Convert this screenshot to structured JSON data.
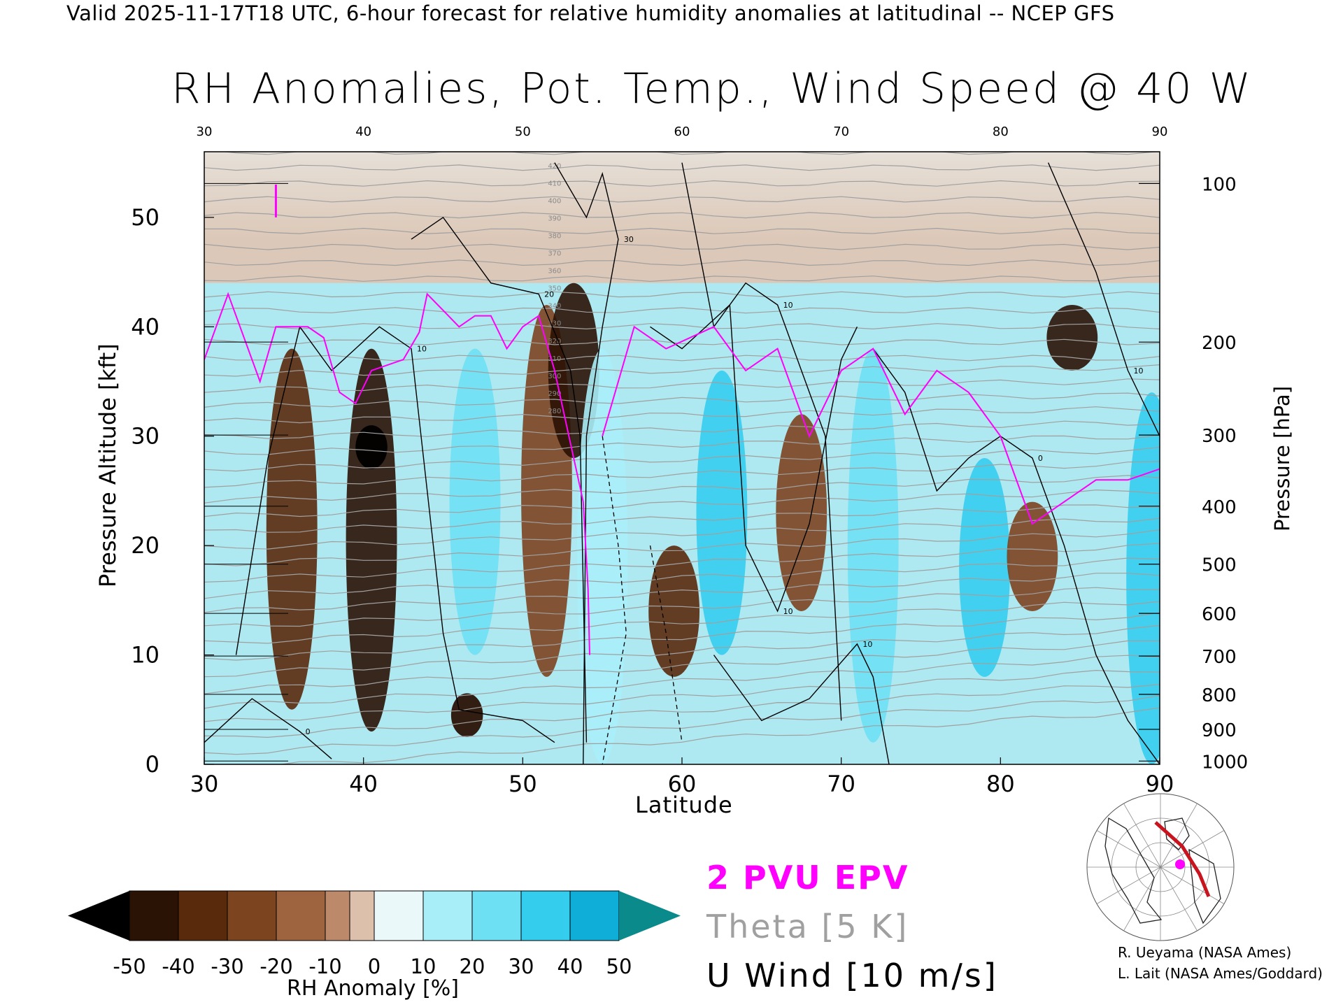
{
  "header": "Valid 2025-11-17T18 UTC, 6-hour forecast for relative humidity anomalies at latitudinal -- NCEP GFS",
  "chart_data": {
    "type": "heatmap",
    "title": "RH Anomalies, Pot. Temp., Wind Speed @ 40 W",
    "xlabel": "Latitude",
    "ylabel": "Pressure Altitude [kft]",
    "ylabel_right": "Pressure [hPa]",
    "xlim": [
      30,
      90
    ],
    "ylim": [
      0,
      56
    ],
    "x_ticks": [
      "30",
      "40",
      "50",
      "60",
      "70",
      "80",
      "90"
    ],
    "y_ticks": [
      "0",
      "10",
      "20",
      "30",
      "40",
      "50"
    ],
    "pressure_ticks": [
      {
        "label": "100",
        "kft": 53.1
      },
      {
        "label": "200",
        "kft": 38.6
      },
      {
        "label": "300",
        "kft": 30.1
      },
      {
        "label": "400",
        "kft": 23.6
      },
      {
        "label": "500",
        "kft": 18.3
      },
      {
        "label": "600",
        "kft": 13.8
      },
      {
        "label": "700",
        "kft": 9.9
      },
      {
        "label": "800",
        "kft": 6.4
      },
      {
        "label": "900",
        "kft": 3.2
      },
      {
        "label": "1000",
        "kft": 0.3
      }
    ],
    "colorbar": {
      "label": "RH Anomaly [%]",
      "tick_labels": [
        "-50",
        "-40",
        "-30",
        "-20",
        "-10",
        "0",
        "10",
        "20",
        "30",
        "40",
        "50"
      ],
      "bins": [
        -50,
        -40,
        -30,
        -20,
        -10,
        0,
        10,
        20,
        30,
        40,
        50
      ],
      "colors": [
        "#2a1204",
        "#5a2a0c",
        "#7d4420",
        "#9e6440",
        "#bc8a6a",
        "#dcc0ac",
        "#d8f2f6",
        "#a8eef8",
        "#6ee0f4",
        "#35cdee",
        "#0faed8",
        "#0a86a8",
        "#000000",
        "#0a8a8a"
      ],
      "under_color": "#000000",
      "over_color": "#0a8a8a"
    },
    "rh_anomaly_features": [
      {
        "lat": 35.5,
        "kft_range": [
          5,
          38
        ],
        "value": -35
      },
      {
        "lat": 40.5,
        "kft_range": [
          3,
          38
        ],
        "value": -40
      },
      {
        "lat": 40.5,
        "kft": 29,
        "value": -55
      },
      {
        "lat": 46.5,
        "kft": 4.5,
        "value": -45
      },
      {
        "lat": 47.0,
        "kft_range": [
          10,
          38
        ],
        "value": 25
      },
      {
        "lat": 51.5,
        "kft_range": [
          8,
          42
        ],
        "value": -25
      },
      {
        "lat": 53.2,
        "kft_range": [
          28,
          44
        ],
        "value": -45
      },
      {
        "lat": 55.0,
        "kft_range": [
          0,
          38
        ],
        "value": 20
      },
      {
        "lat": 59.5,
        "kft_range": [
          8,
          20
        ],
        "value": -35
      },
      {
        "lat": 62.5,
        "kft_range": [
          10,
          36
        ],
        "value": 35
      },
      {
        "lat": 67.5,
        "kft_range": [
          14,
          32
        ],
        "value": -20
      },
      {
        "lat": 72.0,
        "kft_range": [
          2,
          38
        ],
        "value": 30
      },
      {
        "lat": 79.0,
        "kft_range": [
          8,
          28
        ],
        "value": 40
      },
      {
        "lat": 82.0,
        "kft_range": [
          14,
          24
        ],
        "value": -25
      },
      {
        "lat": 84.5,
        "kft_range": [
          36,
          42
        ],
        "value": -45
      },
      {
        "lat": 89.5,
        "kft_range": [
          0,
          34
        ],
        "value": 35
      }
    ],
    "theta_contours": {
      "interval_K": 5,
      "labels": [
        "420",
        "410",
        "400",
        "390",
        "380",
        "370",
        "360",
        "350",
        "340",
        "330",
        "320",
        "310",
        "300",
        "290",
        "280"
      ],
      "color": "#a0a0a0"
    },
    "u_wind_contours": {
      "interval_ms": 10,
      "labels": [
        "0",
        "10",
        "20",
        "30",
        "10",
        "0",
        "10",
        "10",
        "10"
      ],
      "color": "#000000"
    },
    "pv_2pvu_line": {
      "color": "#ff00ff",
      "points": [
        [
          30,
          37
        ],
        [
          31.5,
          43
        ],
        [
          33.5,
          35
        ],
        [
          34.5,
          40
        ],
        [
          36.5,
          40
        ],
        [
          37.5,
          39
        ],
        [
          38.5,
          34
        ],
        [
          39.5,
          33
        ],
        [
          40.5,
          36
        ],
        [
          42.5,
          37
        ],
        [
          43.5,
          39.5
        ],
        [
          44,
          43
        ],
        [
          45,
          41.5
        ],
        [
          46,
          40
        ],
        [
          47,
          41
        ],
        [
          48,
          41
        ],
        [
          49,
          38
        ],
        [
          50,
          40
        ],
        [
          51,
          41
        ],
        [
          52,
          36
        ],
        [
          52.6,
          32
        ],
        [
          53.2,
          28
        ],
        [
          53.8,
          24
        ],
        [
          54.1,
          16
        ],
        [
          54.2,
          10
        ]
      ]
    }
  },
  "legend": {
    "pv": "2 PVU EPV",
    "theta": "Theta [5 K]",
    "wind": "U Wind [10 m/s]"
  },
  "credits": [
    "R. Ueyama (NASA Ames)",
    "L. Lait (NASA Ames/Goddard)"
  ],
  "inset_map": {
    "marker_color": "#ff00ff",
    "section_color": "#c8141e"
  }
}
